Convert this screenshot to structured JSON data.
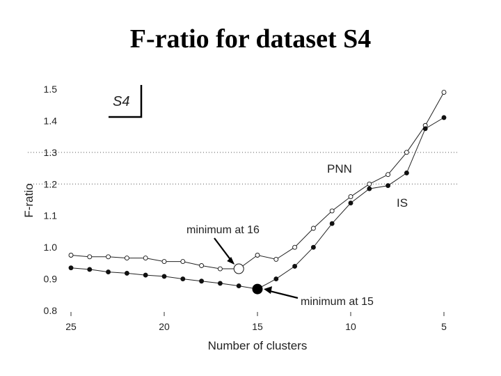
{
  "page": {
    "title": "F-ratio for dataset S4"
  },
  "chart_data": {
    "type": "line",
    "title": "F-ratio for dataset S4",
    "xlabel": "Number of clusters",
    "ylabel": "F-ratio",
    "xlim": [
      25,
      5
    ],
    "ylim": [
      0.8,
      1.5
    ],
    "x_reversed": true,
    "xticks": [
      25,
      20,
      15,
      10,
      5
    ],
    "yticks": [
      "1.5",
      "1.4",
      "1.3",
      "1.2",
      "1.1",
      "1.0",
      "0.9",
      "0.8"
    ],
    "grid": {
      "dotted_y_lines": [
        1.3,
        1.2
      ]
    },
    "inset_label": "S4",
    "series": [
      {
        "name": "PNN",
        "marker": "open-circle",
        "x": [
          25,
          24,
          23,
          22,
          21,
          20,
          19,
          18,
          17,
          16,
          15,
          14,
          13,
          12,
          11,
          10,
          9,
          8,
          7,
          6,
          5
        ],
        "y": [
          0.975,
          0.97,
          0.97,
          0.966,
          0.966,
          0.955,
          0.955,
          0.942,
          0.932,
          0.932,
          0.975,
          0.962,
          1.0,
          1.06,
          1.115,
          1.16,
          1.2,
          1.23,
          1.3,
          1.385,
          1.49
        ]
      },
      {
        "name": "IS",
        "marker": "filled-circle",
        "x": [
          25,
          24,
          23,
          22,
          21,
          20,
          19,
          18,
          17,
          16,
          15,
          14,
          13,
          12,
          11,
          10,
          9,
          8,
          7,
          6,
          5
        ],
        "y": [
          0.935,
          0.93,
          0.922,
          0.918,
          0.912,
          0.908,
          0.9,
          0.893,
          0.886,
          0.878,
          0.868,
          0.9,
          0.94,
          1.0,
          1.075,
          1.14,
          1.185,
          1.195,
          1.235,
          1.375,
          1.41
        ]
      }
    ],
    "annotations": [
      {
        "text": "minimum at 16",
        "series": "PNN",
        "x": 16,
        "y": 0.932
      },
      {
        "text": "minimum at 15",
        "series": "IS",
        "x": 15,
        "y": 0.868
      }
    ]
  }
}
